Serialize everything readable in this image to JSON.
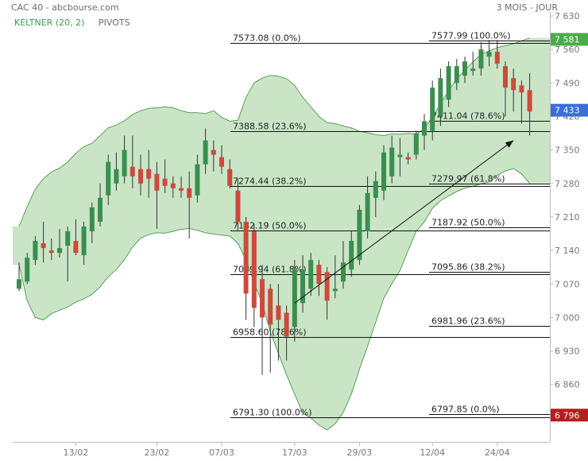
{
  "header": {
    "title": "CAC 40 - abcbourse.com",
    "period": "3 MOIS - JOUR",
    "indicator_1": "KELTNER (20, 2)",
    "indicator_2": "PIVOTS"
  },
  "colors": {
    "up": "#3a8f4f",
    "down": "#cc4a3c",
    "band_fill": "#c9e5c6",
    "band_line": "#5a9e5a",
    "badge_green": "#4aab4a",
    "badge_blue": "#3a6fd8",
    "badge_red": "#b41e1e"
  },
  "chart_data": {
    "type": "candlestick",
    "x_ticks": [
      "13/02",
      "23/02",
      "07/03",
      "17/03",
      "29/03",
      "12/04",
      "24/04"
    ],
    "y_ticks": [
      "7 630",
      "7 560",
      "7 490",
      "7 420",
      "7 350",
      "7 280",
      "7 210",
      "7 140",
      "7 070",
      "7 000",
      "6 930",
      "6 860",
      "6 790"
    ],
    "ylim": [
      6740,
      7640
    ],
    "price_badges": [
      {
        "label": "7 581",
        "value": 7581,
        "color": "green"
      },
      {
        "label": "7 433",
        "value": 7433,
        "color": "blue"
      },
      {
        "label": "6 796",
        "value": 6796,
        "color": "red"
      }
    ],
    "candles": [
      {
        "o": 7060,
        "h": 7115,
        "l": 7055,
        "c": 7080
      },
      {
        "o": 7075,
        "h": 7135,
        "l": 7070,
        "c": 7125
      },
      {
        "o": 7120,
        "h": 7170,
        "l": 7110,
        "c": 7160
      },
      {
        "o": 7155,
        "h": 7200,
        "l": 7115,
        "c": 7145
      },
      {
        "o": 7140,
        "h": 7165,
        "l": 7120,
        "c": 7135
      },
      {
        "o": 7135,
        "h": 7185,
        "l": 7125,
        "c": 7145
      },
      {
        "o": 7150,
        "h": 7190,
        "l": 7075,
        "c": 7180
      },
      {
        "o": 7160,
        "h": 7205,
        "l": 7130,
        "c": 7135
      },
      {
        "o": 7130,
        "h": 7200,
        "l": 7110,
        "c": 7190
      },
      {
        "o": 7180,
        "h": 7240,
        "l": 7155,
        "c": 7230
      },
      {
        "o": 7200,
        "h": 7280,
        "l": 7190,
        "c": 7250
      },
      {
        "o": 7255,
        "h": 7340,
        "l": 7235,
        "c": 7325
      },
      {
        "o": 7280,
        "h": 7345,
        "l": 7265,
        "c": 7310
      },
      {
        "o": 7295,
        "h": 7380,
        "l": 7280,
        "c": 7350
      },
      {
        "o": 7315,
        "h": 7380,
        "l": 7270,
        "c": 7295
      },
      {
        "o": 7310,
        "h": 7340,
        "l": 7255,
        "c": 7280
      },
      {
        "o": 7310,
        "h": 7350,
        "l": 7250,
        "c": 7290
      },
      {
        "o": 7300,
        "h": 7325,
        "l": 7185,
        "c": 7265
      },
      {
        "o": 7290,
        "h": 7330,
        "l": 7260,
        "c": 7275
      },
      {
        "o": 7280,
        "h": 7295,
        "l": 7250,
        "c": 7270
      },
      {
        "o": 7270,
        "h": 7295,
        "l": 7250,
        "c": 7265
      },
      {
        "o": 7270,
        "h": 7305,
        "l": 7165,
        "c": 7250
      },
      {
        "o": 7255,
        "h": 7340,
        "l": 7240,
        "c": 7320
      },
      {
        "o": 7320,
        "h": 7395,
        "l": 7300,
        "c": 7370
      },
      {
        "o": 7350,
        "h": 7370,
        "l": 7305,
        "c": 7340
      },
      {
        "o": 7335,
        "h": 7360,
        "l": 7300,
        "c": 7315
      },
      {
        "o": 7310,
        "h": 7330,
        "l": 7270,
        "c": 7275
      },
      {
        "o": 7265,
        "h": 7290,
        "l": 7180,
        "c": 7200
      },
      {
        "o": 7200,
        "h": 7210,
        "l": 6995,
        "c": 7050
      },
      {
        "o": 7180,
        "h": 7195,
        "l": 6980,
        "c": 7020
      },
      {
        "o": 7080,
        "h": 7110,
        "l": 6880,
        "c": 7000
      },
      {
        "o": 7060,
        "h": 7070,
        "l": 6885,
        "c": 6985
      },
      {
        "o": 7025,
        "h": 7070,
        "l": 6910,
        "c": 6995
      },
      {
        "o": 7010,
        "h": 7025,
        "l": 6910,
        "c": 6960
      },
      {
        "o": 6980,
        "h": 7120,
        "l": 6950,
        "c": 7100
      },
      {
        "o": 7030,
        "h": 7130,
        "l": 7010,
        "c": 7100
      },
      {
        "o": 7060,
        "h": 7135,
        "l": 7045,
        "c": 7120
      },
      {
        "o": 7110,
        "h": 7120,
        "l": 7045,
        "c": 7070
      },
      {
        "o": 7095,
        "h": 7105,
        "l": 6995,
        "c": 7035
      },
      {
        "o": 7055,
        "h": 7130,
        "l": 7040,
        "c": 7060
      },
      {
        "o": 7075,
        "h": 7160,
        "l": 7060,
        "c": 7115
      },
      {
        "o": 7100,
        "h": 7180,
        "l": 7085,
        "c": 7160
      },
      {
        "o": 7120,
        "h": 7235,
        "l": 7110,
        "c": 7225
      },
      {
        "o": 7180,
        "h": 7295,
        "l": 7165,
        "c": 7260
      },
      {
        "o": 7250,
        "h": 7305,
        "l": 7210,
        "c": 7285
      },
      {
        "o": 7265,
        "h": 7360,
        "l": 7245,
        "c": 7345
      },
      {
        "o": 7295,
        "h": 7380,
        "l": 7280,
        "c": 7355
      },
      {
        "o": 7335,
        "h": 7375,
        "l": 7295,
        "c": 7340
      },
      {
        "o": 7335,
        "h": 7345,
        "l": 7320,
        "c": 7330
      },
      {
        "o": 7340,
        "h": 7390,
        "l": 7330,
        "c": 7385
      },
      {
        "o": 7380,
        "h": 7425,
        "l": 7350,
        "c": 7410
      },
      {
        "o": 7390,
        "h": 7495,
        "l": 7370,
        "c": 7480
      },
      {
        "o": 7420,
        "h": 7520,
        "l": 7400,
        "c": 7500
      },
      {
        "o": 7455,
        "h": 7535,
        "l": 7440,
        "c": 7525
      },
      {
        "o": 7490,
        "h": 7540,
        "l": 7475,
        "c": 7525
      },
      {
        "o": 7505,
        "h": 7545,
        "l": 7490,
        "c": 7535
      },
      {
        "o": 7515,
        "h": 7555,
        "l": 7505,
        "c": 7520
      },
      {
        "o": 7520,
        "h": 7575,
        "l": 7505,
        "c": 7560
      },
      {
        "o": 7545,
        "h": 7580,
        "l": 7525,
        "c": 7555
      },
      {
        "o": 7555,
        "h": 7580,
        "l": 7520,
        "c": 7530
      },
      {
        "o": 7525,
        "h": 7535,
        "l": 7420,
        "c": 7480
      },
      {
        "o": 7500,
        "h": 7520,
        "l": 7430,
        "c": 7475
      },
      {
        "o": 7485,
        "h": 7495,
        "l": 7405,
        "c": 7470
      },
      {
        "o": 7475,
        "h": 7510,
        "l": 7380,
        "c": 7430
      }
    ],
    "keltner": {
      "upper": [
        7190,
        7232,
        7268,
        7290,
        7304,
        7312,
        7325,
        7343,
        7357,
        7364,
        7380,
        7396,
        7402,
        7411,
        7424,
        7432,
        7437,
        7438,
        7440,
        7438,
        7432,
        7428,
        7428,
        7426,
        7432,
        7418,
        7410,
        7412,
        7460,
        7490,
        7500,
        7506,
        7504,
        7499,
        7485,
        7460,
        7440,
        7420,
        7407,
        7405,
        7400,
        7396,
        7389,
        7386,
        7382,
        7380,
        7384,
        7383,
        7385,
        7383,
        7395,
        7418,
        7446,
        7474,
        7499,
        7517,
        7534,
        7550,
        7557,
        7564,
        7568,
        7572,
        7578,
        7584
      ],
      "lower": [
        7110,
        7035,
        7000,
        6995,
        7008,
        7015,
        7022,
        7032,
        7039,
        7048,
        7064,
        7085,
        7100,
        7121,
        7147,
        7166,
        7173,
        7177,
        7176,
        7180,
        7184,
        7186,
        7182,
        7177,
        7174,
        7172,
        7170,
        7155,
        7120,
        7072,
        7030,
        6970,
        6925,
        6880,
        6840,
        6800,
        6790,
        6775,
        6765,
        6778,
        6802,
        6840,
        6892,
        6940,
        6990,
        7040,
        7071,
        7098,
        7140,
        7180,
        7200,
        7228,
        7244,
        7254,
        7263,
        7270,
        7274,
        7279,
        7283,
        7297,
        7306,
        7311,
        7300,
        7280
      ]
    },
    "fibonacci": [
      {
        "label": "7573.08  (0.0%)",
        "value": 7573.08,
        "side": "left"
      },
      {
        "label": "7388.58  (23.6%)",
        "value": 7388.58,
        "side": "left"
      },
      {
        "label": "7274.44  (38.2%)",
        "value": 7274.44,
        "side": "left"
      },
      {
        "label": "7182.19  (50.0%)",
        "value": 7182.19,
        "side": "left"
      },
      {
        "label": "7089.94  (61.8%)",
        "value": 7089.94,
        "side": "left"
      },
      {
        "label": "6958.60  (78.6%)",
        "value": 6958.6,
        "side": "left"
      },
      {
        "label": "6791.30  (100.0%)",
        "value": 6791.3,
        "side": "left"
      },
      {
        "label": "7577.99  (100.0%)",
        "value": 7577.99,
        "side": "right"
      },
      {
        "label": "7411.04  (78.6%)",
        "value": 7411.04,
        "side": "right"
      },
      {
        "label": "7279.97  (61.8%)",
        "value": 7279.97,
        "side": "right"
      },
      {
        "label": "7187.92  (50.0%)",
        "value": 7187.92,
        "side": "right"
      },
      {
        "label": "7095.86  (38.2%)",
        "value": 7095.86,
        "side": "right"
      },
      {
        "label": "6981.96  (23.6%)",
        "value": 6981.96,
        "side": "right"
      },
      {
        "label": "6797.85  (0.0%)",
        "value": 6797.85,
        "side": "right"
      }
    ],
    "trend_arrow": {
      "from_index": 34,
      "from_value": 7030,
      "to_index": 61,
      "to_value": 7370
    }
  }
}
